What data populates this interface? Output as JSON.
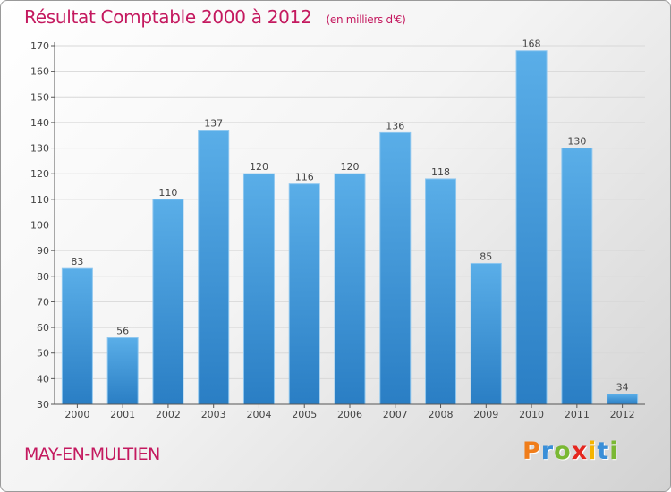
{
  "header": {
    "title": "Résultat Comptable 2000 à 2012",
    "subtitle": "(en milliers d'€)"
  },
  "footer": {
    "town": "MAY-EN-MULTIEN",
    "logo_letters": [
      "P",
      "r",
      "o",
      "x",
      "i",
      "t",
      "i"
    ],
    "logo_colors": [
      "#f07d1a",
      "#3a8fd8",
      "#7ab833",
      "#e5271f",
      "#f5b400",
      "#3a8fd8",
      "#7ab833"
    ]
  },
  "chart_data": {
    "type": "bar",
    "title": "Résultat Comptable 2000 à 2012",
    "categories": [
      "2000",
      "2001",
      "2002",
      "2003",
      "2004",
      "2005",
      "2006",
      "2007",
      "2008",
      "2009",
      "2010",
      "2011",
      "2012"
    ],
    "values": [
      83,
      56,
      110,
      137,
      120,
      116,
      120,
      136,
      118,
      85,
      168,
      130,
      34
    ],
    "ylim": [
      30,
      170
    ],
    "yticks": [
      30,
      40,
      50,
      60,
      70,
      80,
      90,
      100,
      110,
      120,
      130,
      140,
      150,
      160,
      170
    ],
    "grid": true,
    "colors": {
      "bar_top": "#5aaee8",
      "bar_bottom": "#2a7ec4",
      "grid": "#d8d8d8",
      "axis": "#555555"
    }
  }
}
